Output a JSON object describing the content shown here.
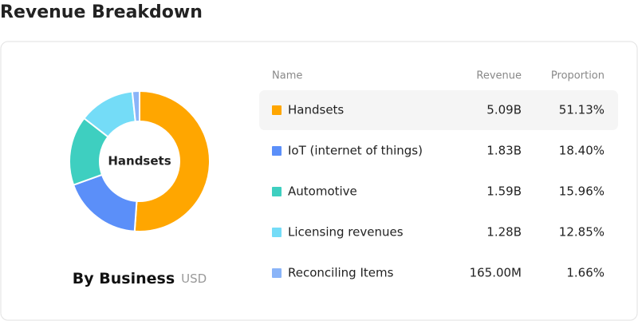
{
  "header": {
    "title": "Revenue Breakdown"
  },
  "chart_data": {
    "type": "pie",
    "title": "By Business",
    "subtitle": "USD",
    "categories": [
      "Handsets",
      "IoT (internet of things)",
      "Automotive",
      "Licensing revenues",
      "Reconciling Items"
    ],
    "values": [
      51.13,
      18.4,
      15.96,
      12.85,
      1.66
    ],
    "value_labels": [
      "51.13%",
      "18.40%",
      "15.96%",
      "12.85%",
      "1.66%"
    ],
    "colors": [
      "#ffa600",
      "#5b8ff9",
      "#3ecfc0",
      "#74dcf7",
      "#8ab4f8"
    ],
    "selected": 0
  },
  "table": {
    "columns": [
      "Name",
      "Revenue",
      "Proportion"
    ],
    "revenue": [
      "5.09B",
      "1.83B",
      "1.59B",
      "1.28B",
      "165.00M"
    ]
  }
}
